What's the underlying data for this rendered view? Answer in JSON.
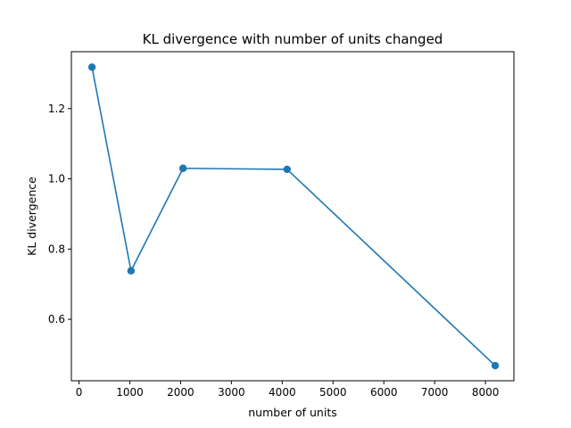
{
  "chart_data": {
    "type": "line",
    "title": "KL divergence with number of units changed",
    "xlabel": "number of units",
    "ylabel": "KL divergence",
    "xlim": [
      -150,
      8560
    ],
    "ylim": [
      0.425,
      1.362
    ],
    "xticks": [
      0,
      1000,
      2000,
      3000,
      4000,
      5000,
      6000,
      7000,
      8000
    ],
    "xtick_labels": [
      "0",
      "1000",
      "2000",
      "3000",
      "4000",
      "5000",
      "6000",
      "7000",
      "8000"
    ],
    "yticks": [
      0.6,
      0.8,
      1.0,
      1.2
    ],
    "ytick_labels": [
      "0.6",
      "0.8",
      "1.0",
      "1.2"
    ],
    "grid": false,
    "legend": "none",
    "series": [
      {
        "color": "#1f77b4",
        "marker": "circle",
        "x": [
          256,
          1024,
          2048,
          4096,
          8192
        ],
        "y": [
          1.318,
          0.738,
          1.03,
          1.027,
          0.468
        ]
      }
    ]
  }
}
